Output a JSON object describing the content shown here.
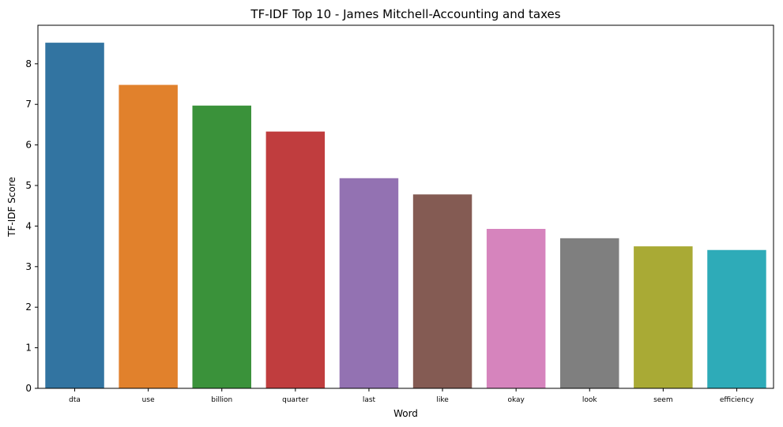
{
  "chart_data": {
    "type": "bar",
    "title": "TF-IDF Top 10 - James Mitchell-Accounting and taxes",
    "xlabel": "Word",
    "ylabel": "TF-IDF Score",
    "categories": [
      "dta",
      "use",
      "billion",
      "quarter",
      "last",
      "like",
      "okay",
      "look",
      "seem",
      "efficiency"
    ],
    "values": [
      8.52,
      7.48,
      6.97,
      6.33,
      5.18,
      4.78,
      3.93,
      3.7,
      3.5,
      3.41
    ],
    "colors": [
      "#3274a1",
      "#e1812c",
      "#3a923a",
      "#c03d3e",
      "#9372b2",
      "#845b53",
      "#d684bd",
      "#7f7f7f",
      "#a9aa35",
      "#2eabb8"
    ],
    "ylim": [
      0,
      8.95
    ],
    "yticks": [
      0,
      1,
      2,
      3,
      4,
      5,
      6,
      7,
      8
    ],
    "grid": false,
    "legend": "none"
  }
}
